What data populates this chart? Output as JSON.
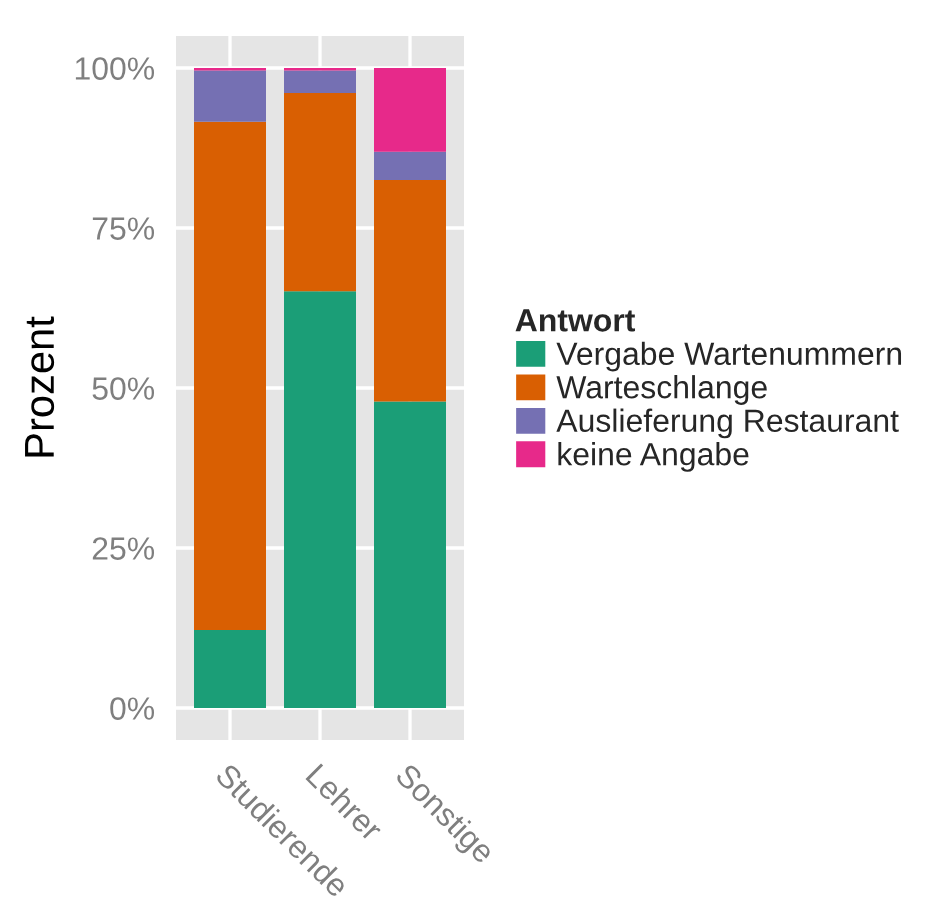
{
  "chart_data": {
    "type": "bar",
    "stacked": true,
    "ylabel": "Prozent",
    "legend_title": "Antwort",
    "categories": [
      "Studierende",
      "Lehrer",
      "Sonstige"
    ],
    "series": [
      {
        "name": "Vergabe Wartenummern",
        "color": "#1b9e77",
        "values": [
          12.2,
          65.1,
          47.9
        ]
      },
      {
        "name": "Warteschlange",
        "color": "#d95f02",
        "values": [
          79.4,
          31.0,
          34.6
        ]
      },
      {
        "name": "Auslieferung Restaurant",
        "color": "#7570b3",
        "values": [
          8.0,
          3.5,
          4.4
        ]
      },
      {
        "name": "keine Angabe",
        "color": "#e7298a",
        "values": [
          0.4,
          0.4,
          13.1
        ]
      }
    ],
    "ylim": [
      -5,
      105
    ],
    "yticks": [
      {
        "value": 0,
        "label": "0%"
      },
      {
        "value": 25,
        "label": "25%"
      },
      {
        "value": 50,
        "label": "50%"
      },
      {
        "value": 75,
        "label": "75%"
      },
      {
        "value": 100,
        "label": "100%"
      }
    ],
    "grid": true,
    "legend": "right"
  }
}
